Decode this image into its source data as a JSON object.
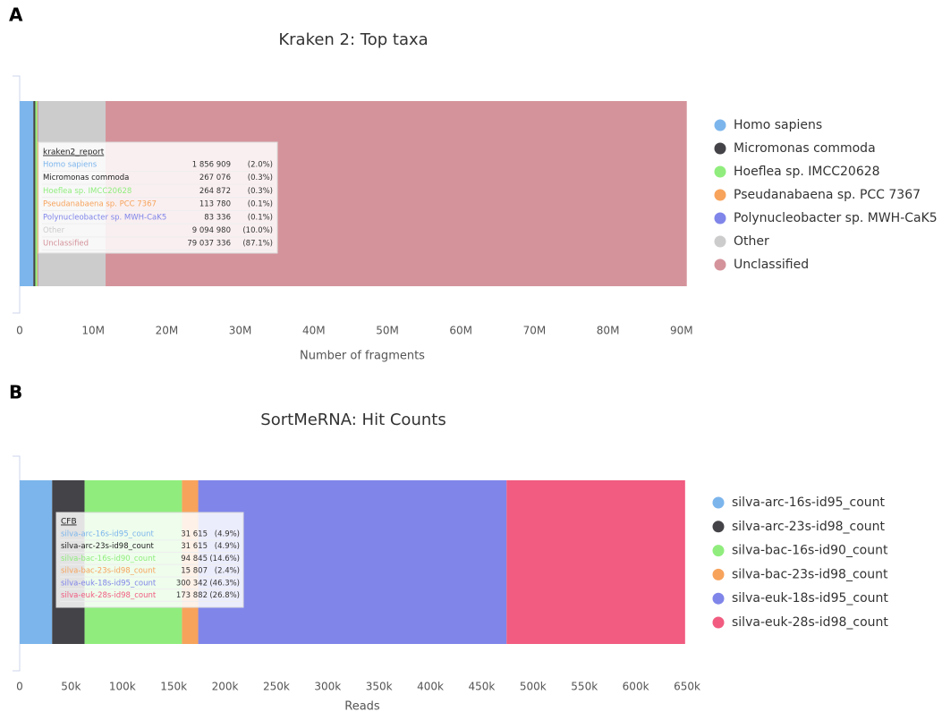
{
  "chart_data": [
    {
      "type": "stacked-bar-h",
      "panel": "A",
      "title": "Kraken 2: Top taxa",
      "xlabel": "Number of fragments",
      "tooltip_title": "kraken2_report",
      "xlim": [
        0,
        90752289
      ],
      "xticks": [
        0,
        {
          "value": 10000000,
          "label": "10M"
        },
        {
          "value": 20000000,
          "label": "20M"
        },
        {
          "value": 30000000,
          "label": "30M"
        },
        {
          "value": 40000000,
          "label": "40M"
        },
        {
          "value": 50000000,
          "label": "50M"
        },
        {
          "value": 60000000,
          "label": "60M"
        },
        {
          "value": 70000000,
          "label": "70M"
        },
        {
          "value": 80000000,
          "label": "80M"
        },
        {
          "value": 90000000,
          "label": "90M"
        }
      ],
      "series": [
        {
          "name": "Homo sapiens",
          "color": "#7cb5ec",
          "values": [
            1856909
          ],
          "value_labels": [
            "1 856 909"
          ],
          "share_label": "(2.0%)"
        },
        {
          "name": "Micromonas commoda",
          "color": "#434348",
          "values": [
            267076
          ],
          "value_labels": [
            "267 076"
          ],
          "share_label": "(0.3%)"
        },
        {
          "name": "Hoeflea sp. IMCC20628",
          "color": "#90ed7d",
          "values": [
            264872
          ],
          "value_labels": [
            "264 872"
          ],
          "share_label": "(0.3%)"
        },
        {
          "name": "Pseudanabaena sp. PCC 7367",
          "color": "#f7a35c",
          "values": [
            113780
          ],
          "value_labels": [
            "113 780"
          ],
          "share_label": "(0.1%)"
        },
        {
          "name": "Polynucleobacter sp. MWH-CaK5",
          "color": "#8085e9",
          "values": [
            83336
          ],
          "value_labels": [
            "83 336"
          ],
          "share_label": "(0.1%)"
        },
        {
          "name": "Other",
          "color": "#cccccc",
          "values": [
            9094980
          ],
          "value_labels": [
            "9 094 980"
          ],
          "share_label": "(10.0%)"
        },
        {
          "name": "Unclassified",
          "color": "#d4939b",
          "values": [
            79037336
          ],
          "value_labels": [
            "79 037 336"
          ],
          "share_label": "(87.1%)"
        }
      ]
    },
    {
      "type": "stacked-bar-h",
      "panel": "B",
      "title": "SortMeRNA: Hit Counts",
      "xlabel": "Reads",
      "tooltip_title": "CFB",
      "xlim": [
        0,
        650000
      ],
      "xticks": [
        0,
        {
          "value": 50000,
          "label": "50k"
        },
        {
          "value": 100000,
          "label": "100k"
        },
        {
          "value": 150000,
          "label": "150k"
        },
        {
          "value": 200000,
          "label": "200k"
        },
        {
          "value": 250000,
          "label": "250k"
        },
        {
          "value": 300000,
          "label": "300k"
        },
        {
          "value": 350000,
          "label": "350k"
        },
        {
          "value": 400000,
          "label": "400k"
        },
        {
          "value": 450000,
          "label": "450k"
        },
        {
          "value": 500000,
          "label": "500k"
        },
        {
          "value": 550000,
          "label": "550k"
        },
        {
          "value": 600000,
          "label": "600k"
        },
        {
          "value": 650000,
          "label": "650k"
        }
      ],
      "series": [
        {
          "name": "silva-arc-16s-id95_count",
          "color": "#7cb5ec",
          "values": [
            31615
          ],
          "value_labels": [
            "31 615"
          ],
          "share_label": "(4.9%)"
        },
        {
          "name": "silva-arc-23s-id98_count",
          "color": "#434348",
          "values": [
            31615
          ],
          "value_labels": [
            "31 615"
          ],
          "share_label": "(4.9%)"
        },
        {
          "name": "silva-bac-16s-id90_count",
          "color": "#90ed7d",
          "values": [
            94845
          ],
          "value_labels": [
            "94 845"
          ],
          "share_label": "(14.6%)"
        },
        {
          "name": "silva-bac-23s-id98_count",
          "color": "#f7a35c",
          "values": [
            15807
          ],
          "value_labels": [
            "15 807"
          ],
          "share_label": "(2.4%)"
        },
        {
          "name": "silva-euk-18s-id95_count",
          "color": "#8085e9",
          "values": [
            300342
          ],
          "value_labels": [
            "300 342"
          ],
          "share_label": "(46.3%)"
        },
        {
          "name": "silva-euk-28s-id98_count",
          "color": "#f15c80",
          "values": [
            173882
          ],
          "value_labels": [
            "173 882"
          ],
          "share_label": "(26.8%)"
        }
      ]
    }
  ]
}
